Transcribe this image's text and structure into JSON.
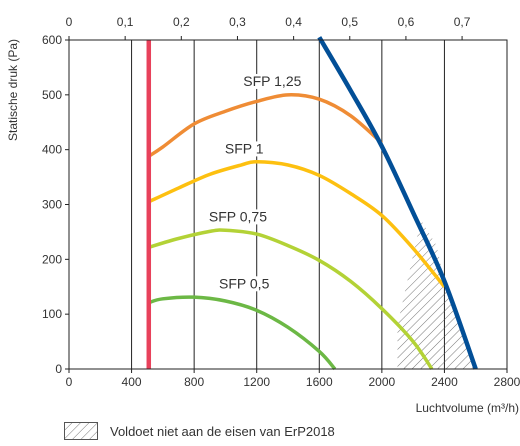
{
  "chart_data": {
    "type": "line",
    "xlabel": "Luchtvolume (m³/h)",
    "ylabel": "Statische druk (Pa)",
    "xlim": [
      0,
      2800
    ],
    "ylim": [
      0,
      600
    ],
    "x_ticks": [
      0,
      400,
      800,
      1200,
      1600,
      2000,
      2400,
      2800
    ],
    "y_ticks": [
      0,
      100,
      200,
      300,
      400,
      500,
      600
    ],
    "x_tick_labels": [
      "0",
      "400",
      "800",
      "1200",
      "1600",
      "2000",
      "2400",
      "2800"
    ],
    "y_tick_labels": [
      "0",
      "100",
      "200",
      "300",
      "400",
      "500",
      "600"
    ],
    "top_axis": {
      "range": [
        0,
        0.78
      ],
      "ticks": [
        0,
        0.1,
        0.2,
        0.3,
        0.4,
        0.5,
        0.6,
        0.7
      ],
      "tick_labels": [
        "0",
        "0,1",
        "0,2",
        "0,3",
        "0,4",
        "0,5",
        "0,6",
        "0,7"
      ]
    },
    "grid": "vertical",
    "series": [
      {
        "name": "SFP 1,25",
        "color": "#ef8c35",
        "x": [
          510,
          600,
          800,
          1000,
          1200,
          1400,
          1600,
          1800,
          2000
        ],
        "y": [
          388,
          405,
          447,
          470,
          488,
          500,
          492,
          462,
          412
        ]
      },
      {
        "name": "SFP 1",
        "color": "#fdc010",
        "x": [
          510,
          700,
          900,
          1100,
          1200,
          1400,
          1600,
          1800,
          2000,
          2200,
          2400
        ],
        "y": [
          305,
          330,
          355,
          372,
          378,
          372,
          353,
          320,
          280,
          220,
          150
        ]
      },
      {
        "name": "SFP 0,75",
        "color": "#b3d236",
        "x": [
          510,
          700,
          900,
          1000,
          1200,
          1400,
          1600,
          1800,
          2000,
          2200,
          2320
        ],
        "y": [
          222,
          238,
          251,
          253,
          246,
          225,
          198,
          160,
          110,
          50,
          0
        ]
      },
      {
        "name": "SFP 0,5",
        "color": "#6cb845",
        "x": [
          510,
          600,
          800,
          1000,
          1200,
          1400,
          1600,
          1700
        ],
        "y": [
          121,
          128,
          131,
          124,
          107,
          76,
          32,
          0
        ]
      },
      {
        "color": "#e8415b",
        "x": [
          510,
          510
        ],
        "y": [
          0,
          600
        ]
      },
      {
        "color": "#024f97",
        "x": [
          1600,
          1800,
          2000,
          2200,
          2400,
          2600
        ],
        "y": [
          605,
          508,
          406,
          285,
          160,
          0
        ]
      }
    ],
    "annotations": [
      {
        "text": "SFP 1,25",
        "x": 1300,
        "y": 518
      },
      {
        "text": "SFP 1",
        "x": 1120,
        "y": 395
      },
      {
        "text": "SFP 0,75",
        "x": 1080,
        "y": 271
      },
      {
        "text": "SFP 0,5",
        "x": 1120,
        "y": 149
      }
    ],
    "hatched_region": {
      "label": "Voldoet niet aan de eisen van ErP2018",
      "x": [
        2250,
        2350,
        2400,
        2600,
        2100,
        2100
      ],
      "y": [
        272,
        225,
        160,
        0,
        0,
        80
      ]
    }
  }
}
